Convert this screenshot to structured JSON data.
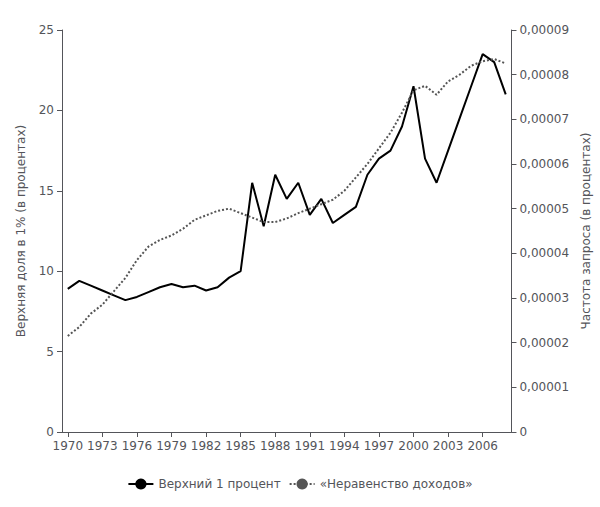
{
  "chart_data": {
    "type": "line",
    "ylabel": "Верхняя доля в 1% (в процентах)",
    "y2label": "Частота запроса (в процентах)",
    "x": [
      1970,
      1971,
      1972,
      1973,
      1974,
      1975,
      1976,
      1977,
      1978,
      1979,
      1980,
      1981,
      1982,
      1983,
      1984,
      1985,
      1986,
      1987,
      1988,
      1989,
      1990,
      1991,
      1992,
      1993,
      1994,
      1995,
      1996,
      1997,
      1998,
      1999,
      2000,
      2001,
      2002,
      2003,
      2004,
      2005,
      2006,
      2007,
      2008
    ],
    "series": [
      {
        "name": "Верхний 1 процент",
        "color": "#000000",
        "line_style": "solid",
        "values": [
          8.9,
          9.4,
          9.1,
          8.8,
          8.5,
          8.2,
          8.4,
          8.7,
          9.0,
          9.2,
          9.0,
          9.1,
          8.8,
          9.0,
          9.6,
          10.0,
          15.5,
          12.8,
          16.0,
          14.5,
          15.5,
          13.5,
          14.5,
          13.0,
          13.5,
          14.0,
          16.0,
          17.0,
          17.5,
          19.0,
          21.5,
          17.0,
          15.5,
          17.5,
          19.5,
          21.5,
          23.5,
          23.0,
          21.0
        ]
      },
      {
        "name": "«Неравенство доходов»",
        "color": "#555555",
        "line_style": "dotted",
        "axis": "y2",
        "values": [
          2.15e-05,
          2.35e-05,
          2.65e-05,
          2.85e-05,
          3.15e-05,
          3.45e-05,
          3.85e-05,
          4.15e-05,
          4.3e-05,
          4.4e-05,
          4.55e-05,
          4.75e-05,
          4.85e-05,
          4.95e-05,
          5e-05,
          4.9e-05,
          4.8e-05,
          4.7e-05,
          4.7e-05,
          4.78e-05,
          4.9e-05,
          5e-05,
          5.1e-05,
          5.2e-05,
          5.4e-05,
          5.7e-05,
          6e-05,
          6.35e-05,
          6.7e-05,
          7.15e-05,
          7.65e-05,
          7.75e-05,
          7.55e-05,
          7.85e-05,
          8e-05,
          8.2e-05,
          8.3e-05,
          8.35e-05,
          8.25e-05
        ]
      }
    ],
    "xlim": [
      1969.5,
      2008.5
    ],
    "xticks": [
      1970,
      1973,
      1976,
      1979,
      1982,
      1985,
      1988,
      1991,
      1994,
      1997,
      2000,
      2003,
      2006
    ],
    "ylim": [
      0,
      25
    ],
    "yticks": [
      0,
      5,
      10,
      15,
      20,
      25
    ],
    "y2lim": [
      0,
      9e-05
    ],
    "y2ticks": [
      0,
      {
        "value": 1e-05,
        "label": "0,00001"
      },
      {
        "value": 2e-05,
        "label": "0,00002"
      },
      {
        "value": 3e-05,
        "label": "0,00003"
      },
      {
        "value": 4e-05,
        "label": "0,00004"
      },
      {
        "value": 5e-05,
        "label": "0,00005"
      },
      {
        "value": 6e-05,
        "label": "0,00006"
      },
      {
        "value": 7e-05,
        "label": "0,00007"
      },
      {
        "value": 8e-05,
        "label": "0,00008"
      },
      {
        "value": 9e-05,
        "label": "0,00009"
      }
    ],
    "grid": false,
    "legend": "bottom"
  }
}
